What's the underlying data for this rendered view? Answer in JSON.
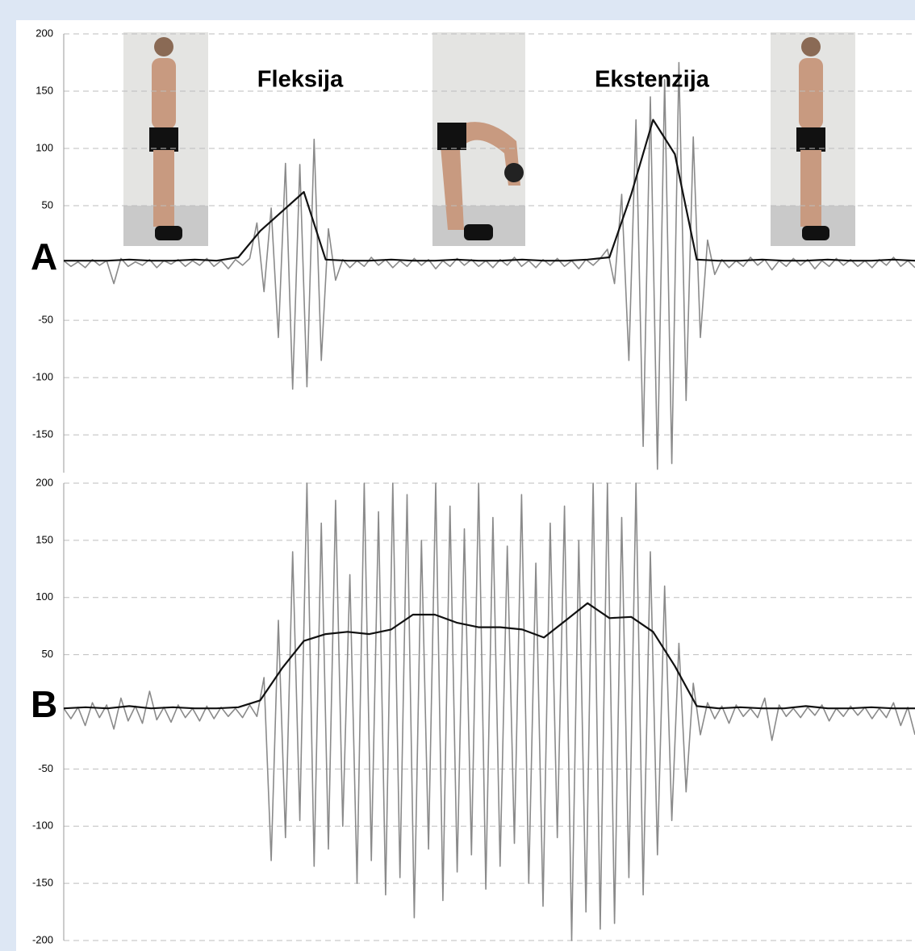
{
  "chart_data": [
    {
      "type": "line",
      "panel_label": "A",
      "annotations": [
        "Fleksija",
        "Ekstenzija"
      ],
      "ylim": [
        -183,
        200
      ],
      "yticks": [
        -150,
        -100,
        -50,
        50,
        100,
        150,
        200
      ],
      "grid": true,
      "series": [
        {
          "color": "#8a8a8a",
          "values": [
            2,
            -3,
            1,
            -4,
            3,
            -2,
            2,
            -18,
            4,
            -3,
            1,
            -2,
            3,
            -4,
            2,
            -1,
            3,
            -3,
            2,
            -2,
            4,
            -3,
            2,
            -5,
            3,
            -2,
            4,
            35,
            -25,
            48,
            -65,
            87,
            -110,
            86,
            -108,
            108,
            -85,
            30,
            -15,
            3,
            -4,
            2,
            -3,
            5,
            -2,
            3,
            -4,
            2,
            -3,
            4,
            -2,
            3,
            -5,
            2,
            -3,
            4,
            -2,
            3,
            -3,
            2,
            -4,
            3,
            -2,
            5,
            -3,
            2,
            -4,
            3,
            -2,
            4,
            -3,
            2,
            -5,
            3,
            -2,
            4,
            12,
            -18,
            60,
            -85,
            125,
            -160,
            145,
            -180,
            160,
            -175,
            175,
            -120,
            110,
            -65,
            20,
            -10,
            3,
            -4,
            2,
            -3,
            5,
            -2,
            3,
            -6,
            2,
            -3,
            4,
            -2,
            3,
            -5,
            2,
            -3,
            4,
            -2,
            3,
            -3,
            2,
            -4,
            3,
            -2,
            5,
            -3,
            2,
            -4
          ]
        },
        {
          "color": "#111111",
          "values": [
            2,
            2,
            2,
            3,
            2,
            2,
            3,
            2,
            5,
            28,
            45,
            62,
            3,
            2,
            2,
            3,
            2,
            2,
            3,
            2,
            2,
            3,
            2,
            2,
            3,
            5,
            60,
            125,
            95,
            3,
            2,
            2,
            3,
            2,
            2,
            3,
            2,
            2,
            3,
            2
          ]
        }
      ]
    },
    {
      "type": "line",
      "panel_label": "B",
      "ylim": [
        -200,
        200
      ],
      "yticks": [
        -200,
        -150,
        -100,
        -50,
        50,
        100,
        150,
        200
      ],
      "grid": true,
      "series": [
        {
          "color": "#8a8a8a",
          "values": [
            3,
            -6,
            4,
            -12,
            8,
            -5,
            6,
            -15,
            12,
            -8,
            5,
            -10,
            18,
            -7,
            4,
            -9,
            6,
            -5,
            3,
            -8,
            5,
            -6,
            4,
            -4,
            3,
            -5,
            6,
            -4,
            30,
            -130,
            80,
            -110,
            140,
            -95,
            200,
            -135,
            165,
            -120,
            185,
            -100,
            120,
            -150,
            200,
            -130,
            175,
            -160,
            200,
            -145,
            190,
            -180,
            150,
            -120,
            200,
            -165,
            180,
            -140,
            160,
            -125,
            200,
            -155,
            170,
            -135,
            145,
            -115,
            190,
            -150,
            130,
            -170,
            165,
            -110,
            180,
            -200,
            150,
            -175,
            200,
            -190,
            200,
            -185,
            170,
            -145,
            200,
            -160,
            140,
            -125,
            110,
            -95,
            60,
            -70,
            25,
            -20,
            8,
            -6,
            5,
            -10,
            6,
            -4,
            3,
            -5,
            12,
            -25,
            6,
            -4,
            3,
            -5,
            4,
            -3,
            6,
            -8,
            3,
            -4,
            5,
            -3,
            4,
            -6,
            3,
            -5,
            8,
            -12,
            4,
            -20
          ]
        },
        {
          "color": "#111111",
          "values": [
            3,
            4,
            3,
            5,
            3,
            4,
            3,
            3,
            4,
            10,
            38,
            62,
            68,
            70,
            68,
            72,
            85,
            85,
            78,
            74,
            74,
            72,
            65,
            80,
            95,
            82,
            83,
            70,
            40,
            5,
            3,
            4,
            3,
            3,
            5,
            3,
            3,
            4,
            3,
            3
          ]
        }
      ]
    }
  ]
}
